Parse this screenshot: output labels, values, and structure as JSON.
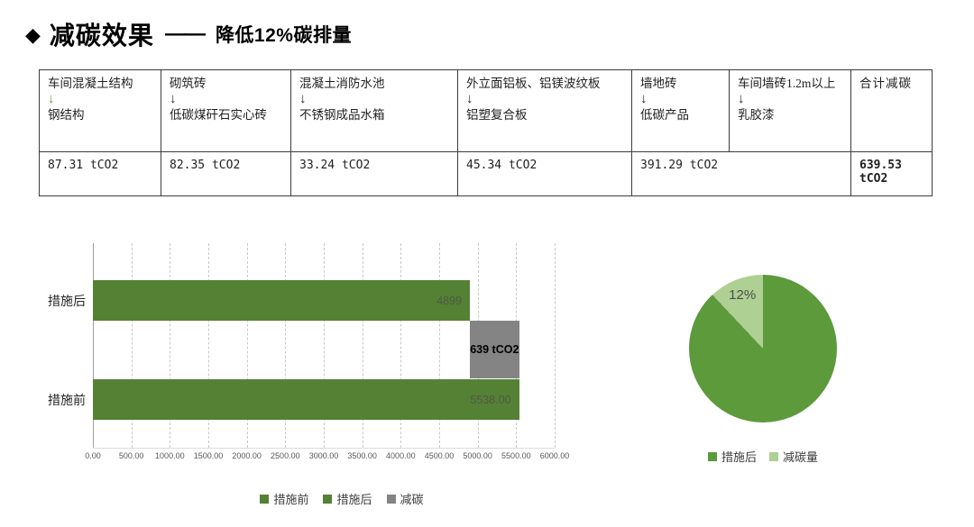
{
  "title": {
    "bullet": "◆",
    "main": "减碳效果",
    "dash": "——",
    "sub": "降低12%碳排量"
  },
  "table": {
    "columns": [
      {
        "from": "车间混凝土结构",
        "arrow": "↓",
        "to": "钢结构",
        "arrow_color": "#58a033"
      },
      {
        "from": "砌筑砖",
        "arrow": "↓",
        "to": "低碳煤矸石实心砖",
        "arrow_color": "#1f1f1f"
      },
      {
        "from": "混凝土消防水池",
        "arrow": "↓",
        "to": "不锈钢成品水箱",
        "arrow_color": "#1f1f1f"
      },
      {
        "from": "外立面铝板、铝镁波纹板",
        "arrow": "↓",
        "to": "铝塑复合板",
        "arrow_color": "#1f1f1f"
      },
      {
        "from": "墙地砖",
        "arrow": "↓",
        "to": "低碳产品",
        "arrow_color": "#1f1f1f"
      },
      {
        "from": "车间墙砖1.2m以上",
        "arrow": "↓",
        "to": "乳胶漆",
        "arrow_color": "#1f1f1f"
      }
    ],
    "total_header": "合计减碳",
    "values": [
      "87.31 tCO2",
      "82.35 tCO2",
      "33.24 tCO2",
      "45.34 tCO2",
      "391.29 tCO2"
    ],
    "total_value": "639.53 tCO2"
  },
  "colors": {
    "bar_green": "#558135",
    "pie_green": "#5c9a3c",
    "light_green": "#aed093",
    "gray": "#848484",
    "grid": "#c9c9c9",
    "axis": "#a0a0a0",
    "tick_text": "#595959",
    "value_label": "#4e5a44",
    "reduction_label": "#000000",
    "legend_text": "#3b3b3b"
  },
  "chart_data": [
    {
      "type": "bar",
      "orientation": "horizontal",
      "categories": [
        "措施后",
        "措施前"
      ],
      "bars": [
        {
          "category": "措施后",
          "series": "措施后",
          "start": 0,
          "value": 4899,
          "label": "4899",
          "color_key": "bar_green",
          "label_color_key": "value_label",
          "label_bold": false,
          "label_align": "right"
        },
        {
          "category": "减碳",
          "series": "减碳",
          "start": 4899,
          "value": 639,
          "label": "639 tCO2",
          "color_key": "gray",
          "label_color_key": "reduction_label",
          "label_bold": true,
          "label_align": "center"
        },
        {
          "category": "措施前",
          "series": "措施前",
          "start": 0,
          "value": 5538,
          "label": "5538.00",
          "color_key": "bar_green",
          "label_color_key": "value_label",
          "label_bold": false,
          "label_align": "right"
        }
      ],
      "xlim": [
        0,
        6000
      ],
      "x_tick_labels": [
        "0.00",
        "500.00",
        "1000.00",
        "1500.00",
        "2000.00",
        "2500.00",
        "3000.00",
        "3500.00",
        "4000.00",
        "4500.00",
        "5000.00",
        "5500.00",
        "6000.00"
      ],
      "grid": "vertical-dashed",
      "legend": {
        "position": "bottom",
        "items": [
          {
            "label": "措施前",
            "color_key": "bar_green"
          },
          {
            "label": "措施后",
            "color_key": "bar_green"
          },
          {
            "label": "减碳",
            "color_key": "gray"
          }
        ]
      }
    },
    {
      "type": "pie",
      "start_angle_deg": 0,
      "direction": "clockwise",
      "slices": [
        {
          "label": "措施后",
          "value": 88,
          "display": "",
          "color_key": "pie_green"
        },
        {
          "label": "减碳量",
          "value": 12,
          "display": "12%",
          "color_key": "light_green"
        }
      ],
      "legend": {
        "position": "bottom",
        "items": [
          {
            "label": "措施后",
            "color_key": "pie_green"
          },
          {
            "label": "减碳量",
            "color_key": "light_green"
          }
        ]
      }
    }
  ]
}
